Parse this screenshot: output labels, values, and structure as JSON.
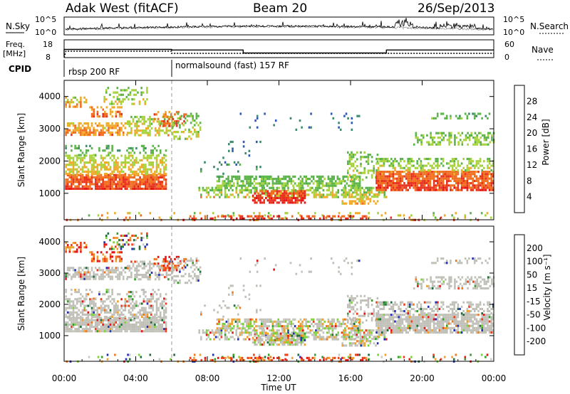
{
  "header": {
    "station": "Adak West (fitACF)",
    "beam": "Beam 20",
    "date": "26/Sep/2013"
  },
  "chart_data": [
    {
      "type": "line",
      "panel": "noise",
      "left_label": "N.Sky",
      "right_label": "N.Search",
      "left_ticks": [
        "10^5",
        "10^0"
      ],
      "right_ticks": [
        "10^5",
        "10^0"
      ]
    },
    {
      "type": "line",
      "panel": "freq-nave",
      "left_label_line1": "Freq.",
      "left_label_line2": "[MHz]",
      "right_label": "Nave",
      "left_ticks": [
        "18",
        "8"
      ],
      "right_ticks": [
        "60",
        "0"
      ],
      "freq_steps": [
        {
          "from_hour": 0.0,
          "to_hour": 6.0,
          "value": 12.6
        },
        {
          "from_hour": 6.0,
          "to_hour": 10.0,
          "value": 12.3
        },
        {
          "from_hour": 10.0,
          "to_hour": 18.0,
          "value": 10.6
        },
        {
          "from_hour": 18.0,
          "to_hour": 24.0,
          "value": 12.3
        }
      ]
    },
    {
      "type": "table",
      "panel": "cpid",
      "label": "CPID",
      "segments": [
        {
          "start_hour": 0.0,
          "text": "rbsp 200 RF"
        },
        {
          "start_hour": 6.0,
          "text": "normalsound (fast) 157 RF"
        }
      ]
    },
    {
      "type": "heatmap",
      "panel": "power",
      "ylabel": "Slant Range [km]",
      "ylim": [
        180,
        4500
      ],
      "yticks": [
        1000,
        2000,
        3000,
        4000
      ],
      "colorbar_label": "Power [dB]",
      "colorbar_ticks": [
        4,
        8,
        12,
        16,
        20,
        24,
        28
      ],
      "colorbar_range": [
        0,
        32
      ]
    },
    {
      "type": "heatmap",
      "panel": "velocity",
      "ylabel": "Slant Range [km]",
      "ylim": [
        180,
        4500
      ],
      "yticks": [
        1000,
        2000,
        3000,
        4000
      ],
      "colorbar_label": "Velocity [m s⁻¹]",
      "colorbar_ticks": [
        "200",
        "100",
        "50",
        "15",
        "-15",
        "-50",
        "-100",
        "-200"
      ]
    }
  ],
  "time_axis": {
    "xlabel": "Time UT",
    "xlim": [
      0,
      24
    ],
    "tick_hours": [
      0,
      4,
      8,
      12,
      16,
      20,
      24
    ],
    "tick_labels": [
      "00:00",
      "04:00",
      "08:00",
      "12:00",
      "16:00",
      "20:00",
      "00:00"
    ]
  },
  "colors": {
    "power_scale": [
      "#1428d2",
      "#2c5ab4",
      "#3c8c6a",
      "#5ab44a",
      "#a8d23c",
      "#f0aa28",
      "#f06e1e",
      "#e8321e",
      "#e61414"
    ],
    "velocity_scale": [
      "#2430b4",
      "#1e6e3c",
      "#32a028",
      "#7cd23c",
      "#c8c8c0",
      "#f0a028",
      "#f0781e",
      "#f03c14",
      "#e61414"
    ],
    "ground_scatter": "#c0c0b8"
  }
}
